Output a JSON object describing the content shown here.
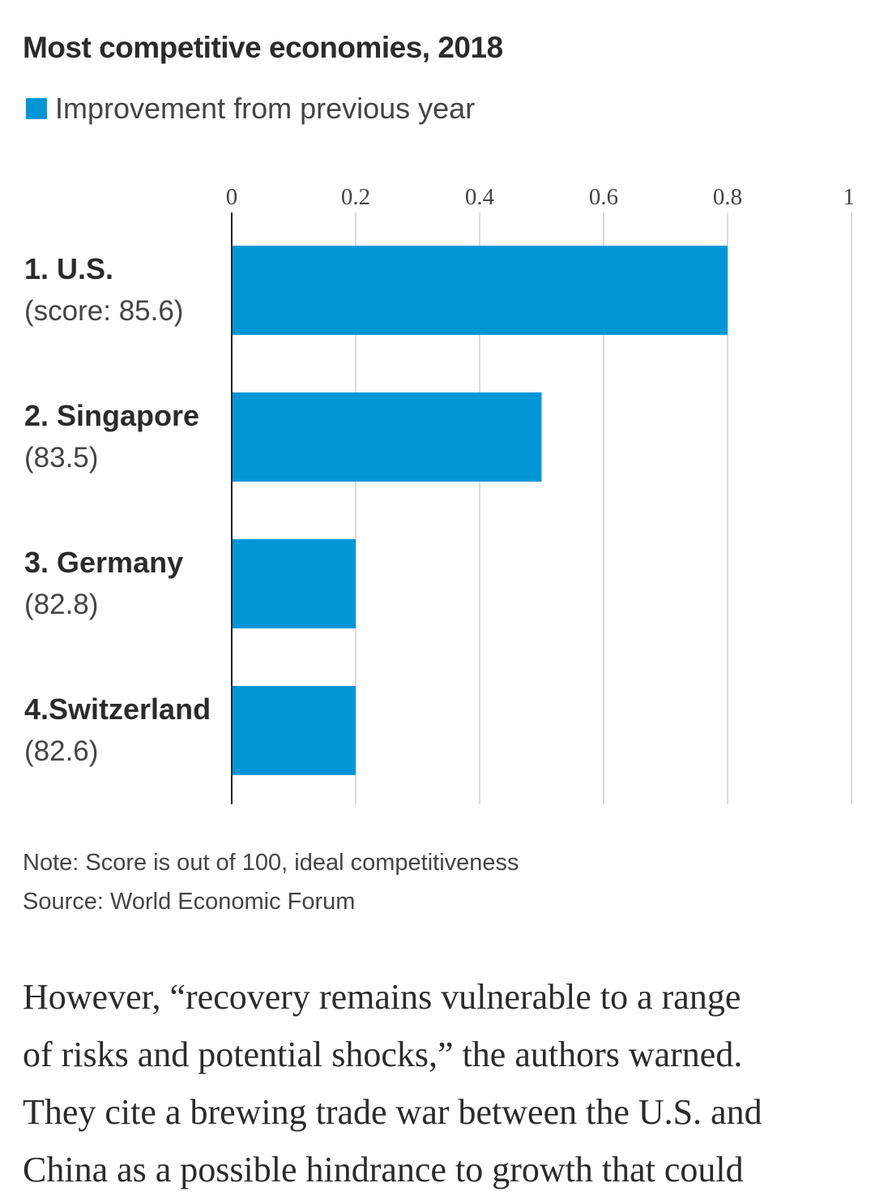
{
  "chart_data": {
    "type": "bar",
    "orientation": "horizontal",
    "title": "Most competitive economies, 2018",
    "legend": [
      {
        "label": "Improvement from previous year",
        "color": "#0396d7"
      }
    ],
    "legend_position": "top-left",
    "categories": [
      {
        "name": "1. U.S.",
        "score": "(score: 85.6)"
      },
      {
        "name": "2. Singapore",
        "score": "(83.5)"
      },
      {
        "name": "3. Germany",
        "score": "(82.8)"
      },
      {
        "name": "4.Switzerland",
        "score": "(82.6)"
      }
    ],
    "series": [
      {
        "name": "Improvement from previous year",
        "values": [
          0.8,
          0.5,
          0.2,
          0.2
        ],
        "color": "#0396d7"
      }
    ],
    "xlim": [
      0,
      1
    ],
    "xticks": [
      0,
      0.2,
      0.4,
      0.6,
      0.8,
      1
    ],
    "xtick_labels": [
      "0",
      "0.2",
      "0.4",
      "0.6",
      "0.8",
      "1"
    ],
    "grid": true,
    "xlabel": "",
    "ylabel": ""
  },
  "notes": {
    "note": "Note: Score is out of 100, ideal competitiveness",
    "source": "Source: World Economic Forum"
  },
  "article": {
    "lines": [
      "However, “recovery remains vulnerable to a range",
      "of risks and potential shocks,” the authors warned.",
      "They cite a brewing trade war between the U.S. and",
      "China as a possible hindrance to growth that could"
    ]
  }
}
